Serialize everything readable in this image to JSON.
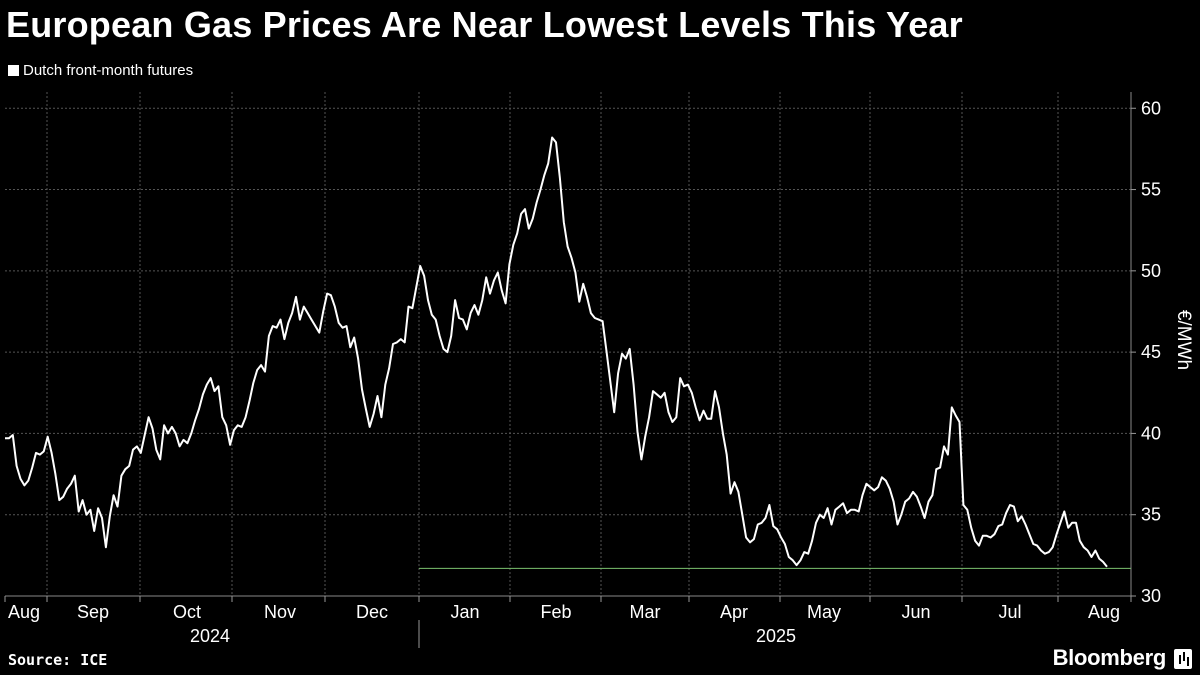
{
  "title": "European Gas Prices Are Near Lowest Levels This Year",
  "legend": "Dutch front-month futures",
  "source": "Source: ICE",
  "brand": "Bloomberg",
  "chart_data": {
    "type": "line",
    "ylabel": "€/MWh",
    "ylim": [
      30,
      61
    ],
    "y_ticks": [
      30,
      35,
      40,
      45,
      50,
      55,
      60
    ],
    "month_labels": [
      "Aug",
      "Sep",
      "Oct",
      "Nov",
      "Dec",
      "Jan",
      "Feb",
      "Mar",
      "Apr",
      "May",
      "Jun",
      "Jul",
      "Aug"
    ],
    "year_labels": [
      "2024",
      "2025"
    ],
    "grid": true,
    "reference_line": {
      "value": 31.7,
      "color": "#7bc26f"
    },
    "series": [
      {
        "color": "#ffffff",
        "values": [
          39.7,
          39.7,
          39.9,
          38.0,
          37.2,
          36.8,
          37.1,
          37.9,
          38.8,
          38.7,
          38.9,
          39.8,
          38.8,
          37.5,
          35.9,
          36.1,
          36.6,
          36.9,
          37.4,
          35.2,
          35.9,
          35.0,
          35.3,
          34.0,
          35.4,
          34.8,
          33.0,
          34.9,
          36.2,
          35.5,
          37.4,
          37.8,
          38.0,
          39.0,
          39.2,
          38.8,
          39.9,
          41.0,
          40.3,
          39.0,
          38.4,
          40.5,
          40.0,
          40.4,
          40.0,
          39.2,
          39.6,
          39.4,
          40.0,
          40.8,
          41.5,
          42.4,
          43.0,
          43.4,
          42.6,
          42.9,
          41.0,
          40.5,
          39.3,
          40.2,
          40.5,
          40.4,
          41.0,
          42.0,
          43.1,
          43.9,
          44.2,
          43.8,
          46.0,
          46.6,
          46.5,
          47.0,
          45.8,
          46.8,
          47.4,
          48.4,
          47.0,
          47.8,
          47.4,
          47.0,
          46.6,
          46.2,
          47.5,
          48.6,
          48.5,
          47.8,
          46.8,
          46.5,
          46.6,
          45.3,
          45.9,
          44.6,
          42.7,
          41.5,
          40.4,
          41.2,
          42.3,
          41.0,
          43.0,
          44.0,
          45.5,
          45.6,
          45.8,
          45.6,
          47.8,
          47.7,
          49.0,
          50.3,
          49.7,
          48.2,
          47.3,
          47.0,
          46.0,
          45.2,
          45.0,
          46.0,
          48.2,
          47.1,
          47.0,
          46.4,
          47.4,
          47.9,
          47.3,
          48.2,
          49.6,
          48.6,
          49.4,
          49.9,
          48.8,
          48.0,
          50.4,
          51.6,
          52.3,
          53.5,
          53.8,
          52.6,
          53.2,
          54.2,
          55.0,
          55.9,
          56.6,
          58.2,
          57.9,
          55.7,
          53.0,
          51.5,
          50.8,
          49.9,
          48.1,
          49.2,
          48.4,
          47.4,
          47.1,
          47.0,
          46.9,
          45.1,
          43.2,
          41.3,
          43.7,
          44.9,
          44.6,
          45.2,
          43.0,
          40.1,
          38.4,
          39.8,
          41.0,
          42.6,
          42.4,
          42.2,
          42.5,
          41.3,
          40.7,
          41.0,
          43.4,
          42.9,
          43.0,
          42.5,
          41.6,
          40.8,
          41.4,
          40.9,
          40.9,
          42.6,
          41.6,
          40.0,
          38.7,
          36.3,
          37.0,
          36.4,
          35.0,
          33.6,
          33.3,
          33.5,
          34.4,
          34.5,
          34.8,
          35.6,
          34.3,
          34.1,
          33.6,
          33.2,
          32.4,
          32.2,
          31.9,
          32.2,
          32.7,
          32.6,
          33.4,
          34.5,
          35.0,
          34.8,
          35.4,
          34.4,
          35.3,
          35.5,
          35.7,
          35.1,
          35.3,
          35.3,
          35.2,
          36.2,
          36.9,
          36.7,
          36.5,
          36.7,
          37.3,
          37.1,
          36.6,
          35.8,
          34.4,
          35.0,
          35.8,
          36.0,
          36.4,
          36.1,
          35.5,
          34.8,
          35.8,
          36.2,
          37.8,
          37.9,
          39.2,
          38.7,
          41.6,
          41.1,
          40.7,
          35.6,
          35.3,
          34.2,
          33.4,
          33.1,
          33.7,
          33.7,
          33.6,
          33.8,
          34.3,
          34.4,
          35.1,
          35.6,
          35.5,
          34.6,
          34.9,
          34.4,
          33.8,
          33.2,
          33.1,
          32.8,
          32.6,
          32.7,
          33.0,
          33.8,
          34.5,
          35.2,
          34.2,
          34.5,
          34.5,
          33.4,
          33.0,
          32.8,
          32.4,
          32.8,
          32.3,
          32.1,
          31.8
        ]
      }
    ]
  }
}
